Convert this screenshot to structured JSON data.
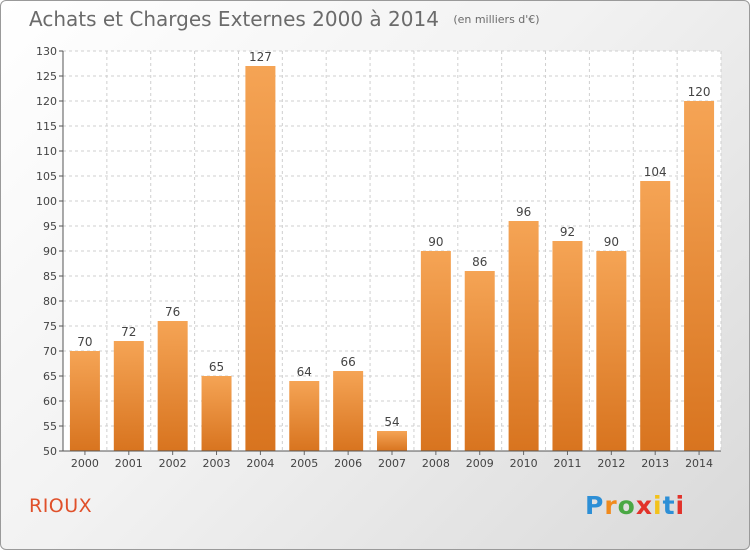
{
  "header": {
    "title": "Achats et Charges Externes 2000 à 2014",
    "unit": "(en milliers d'€)"
  },
  "footer": {
    "commune": "RIOUX"
  },
  "logo": {
    "text": "Proxiti",
    "letter_colors": [
      "#2d8fd6",
      "#f08a1c",
      "#4aa844",
      "#e2322a",
      "#f3c21a",
      "#2d8fd6",
      "#e2322a"
    ]
  },
  "colors": {
    "bar_light": "#f5a455",
    "bar_dark": "#d8741f",
    "label": "#444444"
  },
  "chart_data": {
    "type": "bar",
    "categories": [
      "2000",
      "2001",
      "2002",
      "2003",
      "2004",
      "2005",
      "2006",
      "2007",
      "2008",
      "2009",
      "2010",
      "2011",
      "2012",
      "2013",
      "2014"
    ],
    "values": [
      70,
      72,
      76,
      65,
      127,
      64,
      66,
      54,
      90,
      86,
      96,
      92,
      90,
      104,
      120
    ],
    "title": "Achats et Charges Externes 2000 à 2014",
    "ylim": [
      50,
      130
    ],
    "yticks": [
      50,
      55,
      60,
      65,
      70,
      75,
      80,
      85,
      90,
      95,
      100,
      105,
      110,
      115,
      120,
      125,
      130
    ],
    "grid": true
  }
}
